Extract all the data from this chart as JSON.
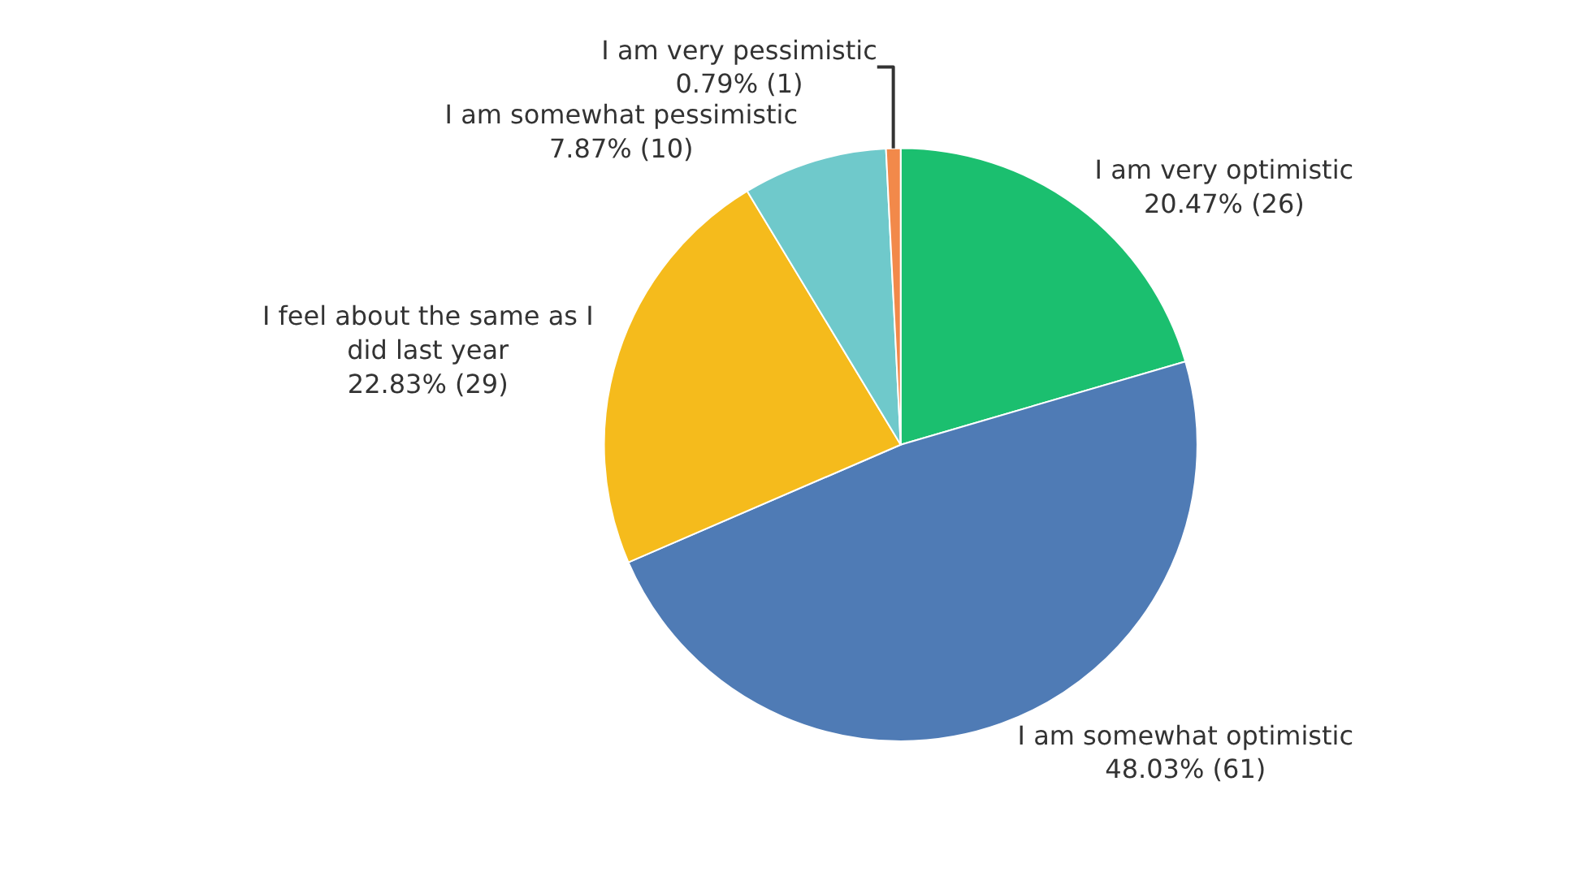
{
  "chart_data": {
    "type": "pie",
    "categories": [
      "I am very optimistic",
      "I am somewhat optimistic",
      "I feel about the same as I did last year",
      "I am somewhat pessimistic",
      "I am very pessimistic"
    ],
    "values": [
      20.47,
      48.03,
      22.83,
      7.87,
      0.79
    ],
    "value_labels": [
      "20.47% (26)",
      "48.03% (61)",
      "22.83% (29)",
      "7.87% (10)",
      "0.79% (1)"
    ],
    "colors": [
      "#1bbf6f",
      "#4f7bb5",
      "#f5bb1c",
      "#6fc9cb",
      "#f2894a"
    ],
    "legend": false
  }
}
